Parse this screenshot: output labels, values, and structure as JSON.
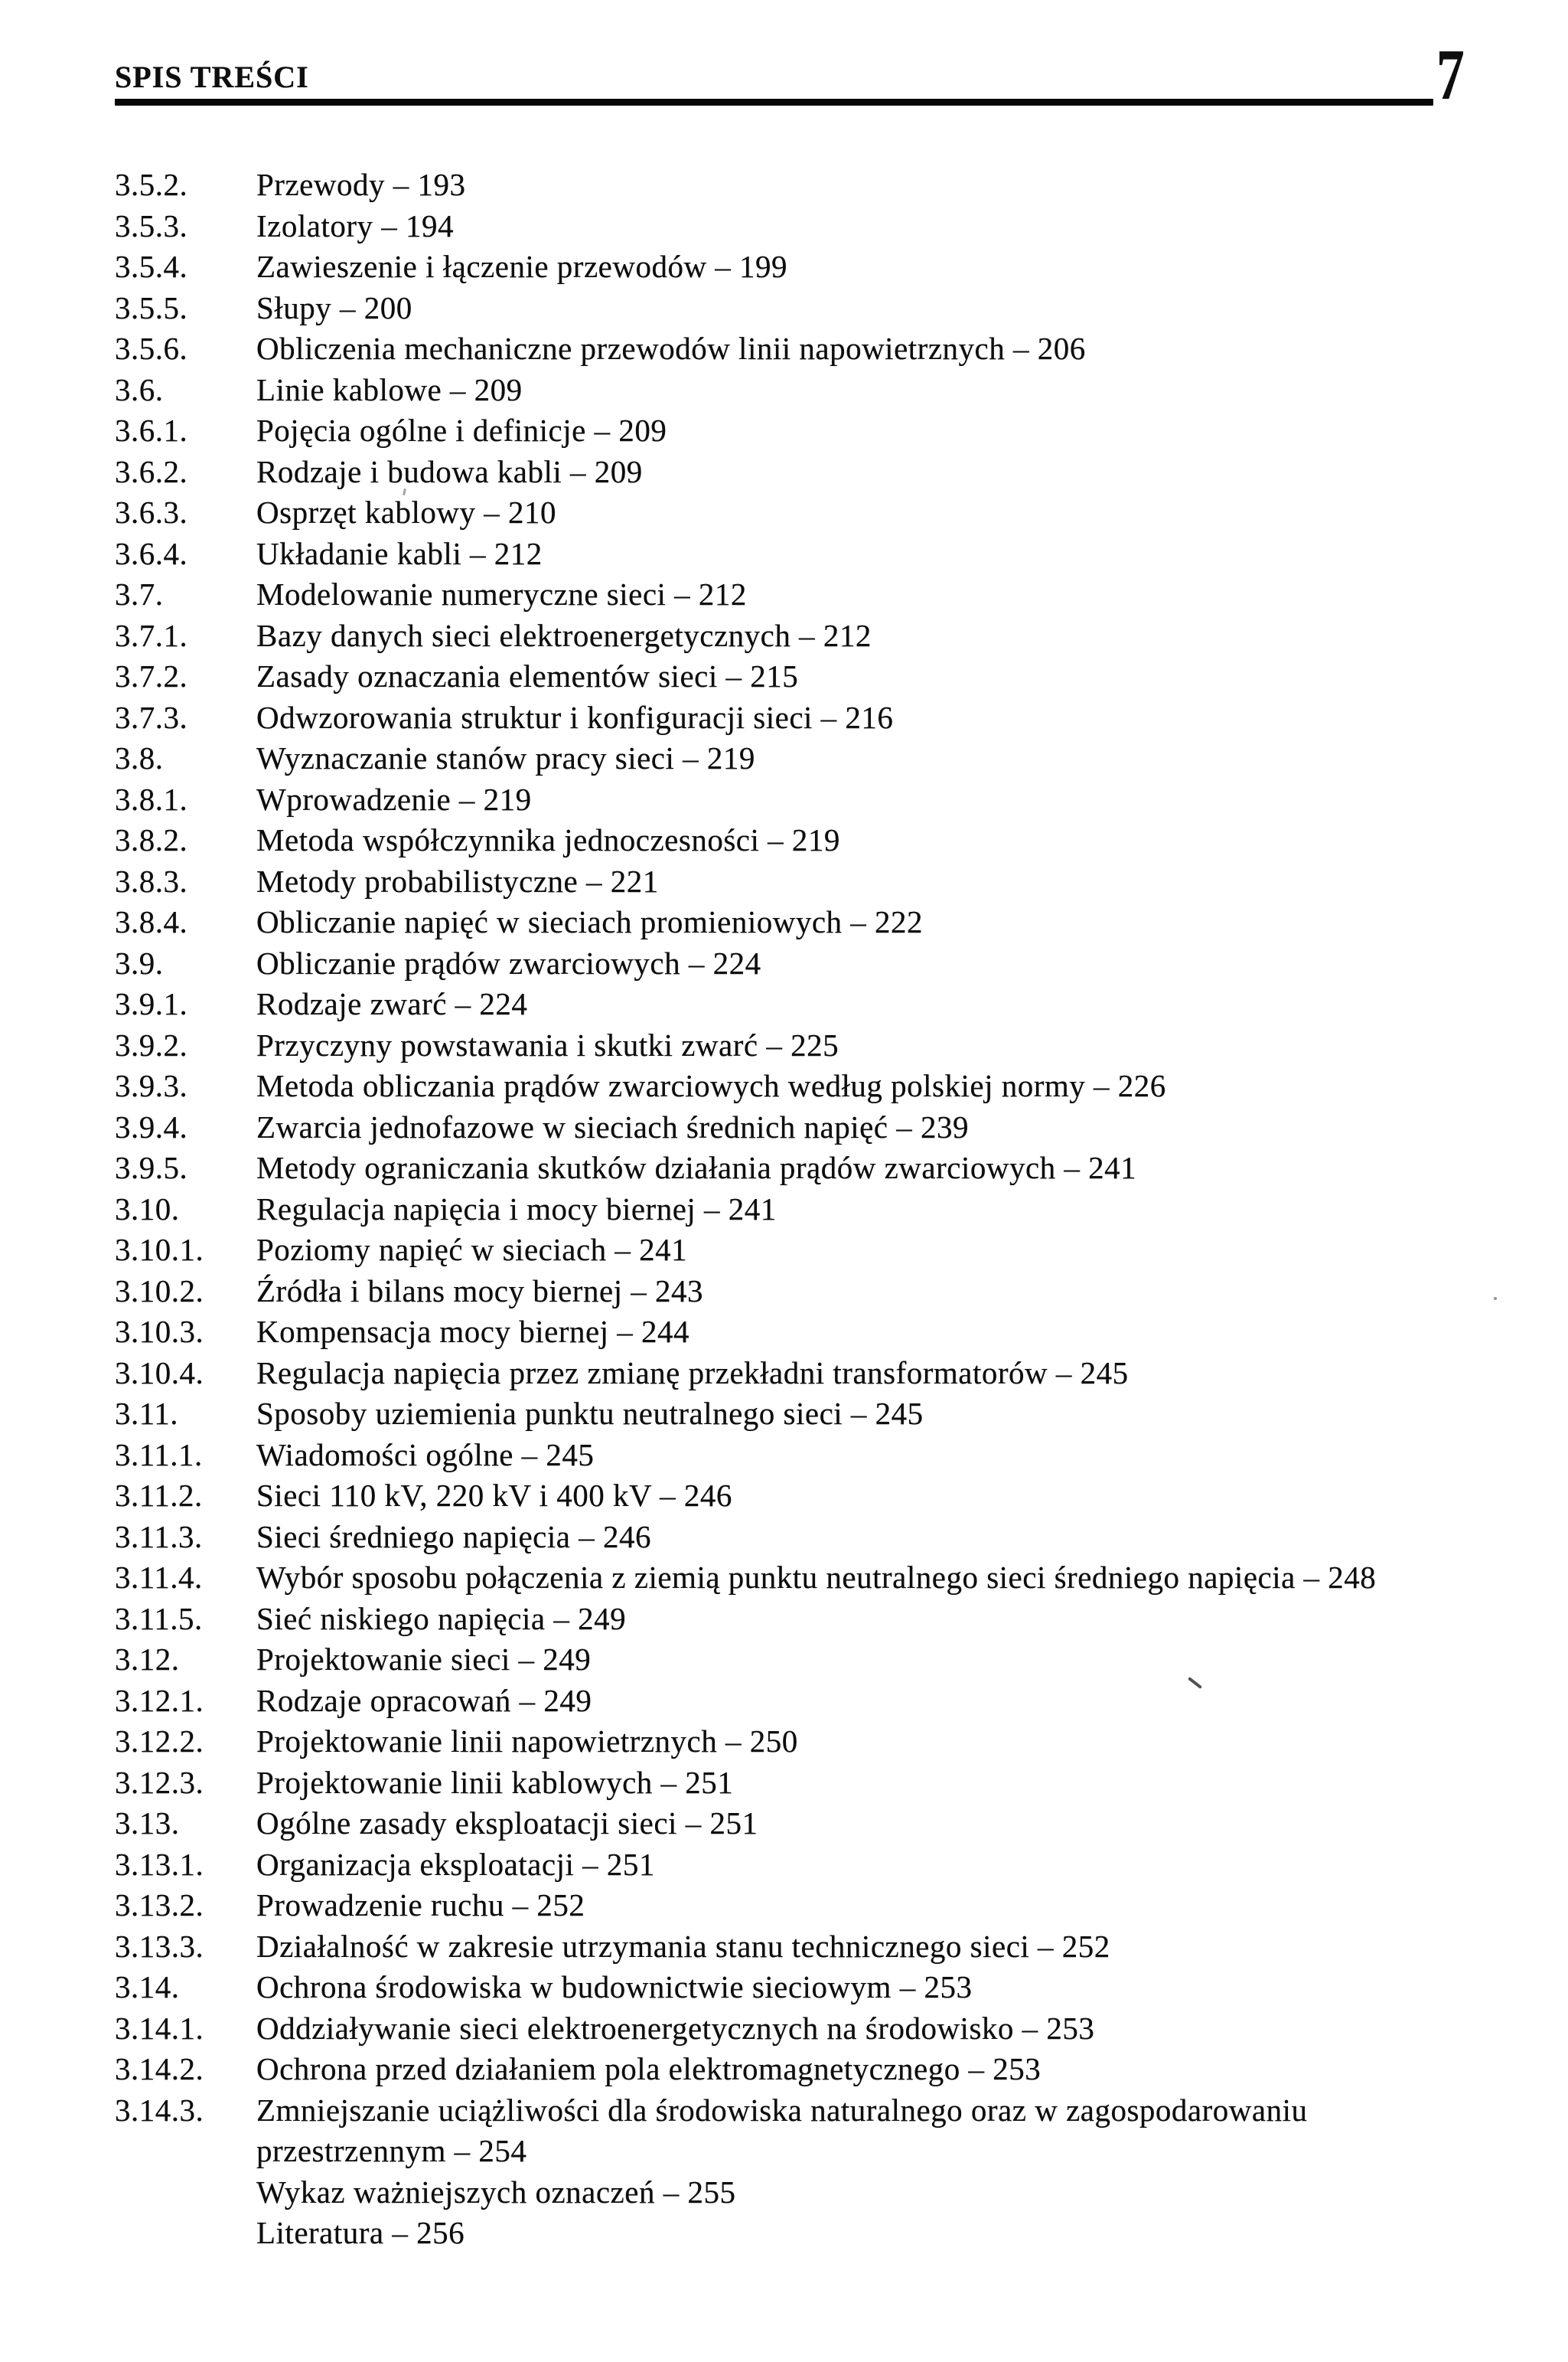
{
  "header": {
    "title": "SPIS TREŚCI",
    "page_number": "7"
  },
  "toc": {
    "separator": "–",
    "entries": [
      {
        "num": "3.5.2.",
        "title": "Przewody",
        "page": "193"
      },
      {
        "num": "3.5.3.",
        "title": "Izolatory",
        "page": "194"
      },
      {
        "num": "3.5.4.",
        "title": "Zawieszenie i łączenie przewodów",
        "page": "199"
      },
      {
        "num": "3.5.5.",
        "title": "Słupy",
        "page": "200"
      },
      {
        "num": "3.5.6.",
        "title": "Obliczenia mechaniczne przewodów linii napowietrznych",
        "page": "206"
      },
      {
        "num": "3.6.",
        "title": "Linie kablowe",
        "page": "209"
      },
      {
        "num": "3.6.1.",
        "title": "Pojęcia ogólne i definicje",
        "page": "209"
      },
      {
        "num": "3.6.2.",
        "title": "Rodzaje i budowa kabli",
        "page": "209"
      },
      {
        "num": "3.6.3.",
        "title": "Osprzęt kablowy",
        "page": "210"
      },
      {
        "num": "3.6.4.",
        "title": "Układanie kabli",
        "page": "212"
      },
      {
        "num": "3.7.",
        "title": "Modelowanie numeryczne sieci",
        "page": "212"
      },
      {
        "num": "3.7.1.",
        "title": "Bazy danych sieci elektroenergetycznych",
        "page": "212"
      },
      {
        "num": "3.7.2.",
        "title": "Zasady oznaczania elementów sieci",
        "page": "215"
      },
      {
        "num": "3.7.3.",
        "title": "Odwzorowania struktur i konfiguracji sieci",
        "page": "216"
      },
      {
        "num": "3.8.",
        "title": "Wyznaczanie stanów pracy sieci",
        "page": "219"
      },
      {
        "num": "3.8.1.",
        "title": "Wprowadzenie",
        "page": "219"
      },
      {
        "num": "3.8.2.",
        "title": "Metoda współczynnika jednoczesności",
        "page": "219"
      },
      {
        "num": "3.8.3.",
        "title": "Metody probabilistyczne",
        "page": "221"
      },
      {
        "num": "3.8.4.",
        "title": "Obliczanie napięć w sieciach promieniowych",
        "page": "222"
      },
      {
        "num": "3.9.",
        "title": "Obliczanie prądów zwarciowych",
        "page": "224"
      },
      {
        "num": "3.9.1.",
        "title": "Rodzaje zwarć",
        "page": "224"
      },
      {
        "num": "3.9.2.",
        "title": "Przyczyny powstawania i skutki zwarć",
        "page": "225"
      },
      {
        "num": "3.9.3.",
        "title": "Metoda obliczania prądów zwarciowych według polskiej normy",
        "page": "226"
      },
      {
        "num": "3.9.4.",
        "title": "Zwarcia jednofazowe w sieciach średnich napięć",
        "page": "239"
      },
      {
        "num": "3.9.5.",
        "title": "Metody ograniczania skutków działania prądów zwarciowych",
        "page": "241"
      },
      {
        "num": "3.10.",
        "title": "Regulacja napięcia i mocy biernej",
        "page": "241"
      },
      {
        "num": "3.10.1.",
        "title": "Poziomy napięć w sieciach",
        "page": "241"
      },
      {
        "num": "3.10.2.",
        "title": "Źródła i bilans mocy biernej",
        "page": "243"
      },
      {
        "num": "3.10.3.",
        "title": "Kompensacja mocy biernej",
        "page": "244"
      },
      {
        "num": "3.10.4.",
        "title": "Regulacja napięcia przez zmianę przekładni transformatorów",
        "page": "245"
      },
      {
        "num": "3.11.",
        "title": "Sposoby uziemienia punktu neutralnego sieci",
        "page": "245"
      },
      {
        "num": "3.11.1.",
        "title": "Wiadomości ogólne",
        "page": "245"
      },
      {
        "num": "3.11.2.",
        "title": "Sieci 110 kV, 220 kV i 400 kV",
        "page": "246"
      },
      {
        "num": "3.11.3.",
        "title": "Sieci średniego napięcia",
        "page": "246"
      },
      {
        "num": "3.11.4.",
        "title": "Wybór sposobu połączenia z ziemią punktu neutralnego sieci średniego napięcia",
        "page": "248"
      },
      {
        "num": "3.11.5.",
        "title": "Sieć niskiego napięcia",
        "page": "249"
      },
      {
        "num": "3.12.",
        "title": "Projektowanie sieci",
        "page": "249"
      },
      {
        "num": "3.12.1.",
        "title": "Rodzaje opracowań",
        "page": "249"
      },
      {
        "num": "3.12.2.",
        "title": "Projektowanie linii napowietrznych",
        "page": "250"
      },
      {
        "num": "3.12.3.",
        "title": "Projektowanie linii kablowych",
        "page": "251"
      },
      {
        "num": "3.13.",
        "title": "Ogólne zasady eksploatacji sieci",
        "page": "251"
      },
      {
        "num": "3.13.1.",
        "title": "Organizacja eksploatacji",
        "page": "251"
      },
      {
        "num": "3.13.2.",
        "title": "Prowadzenie ruchu",
        "page": "252"
      },
      {
        "num": "3.13.3.",
        "title": "Działalność w zakresie utrzymania stanu technicznego sieci",
        "page": "252"
      },
      {
        "num": "3.14.",
        "title": "Ochrona środowiska w budownictwie sieciowym",
        "page": "253"
      },
      {
        "num": "3.14.1.",
        "title": "Oddziaływanie sieci elektroenergetycznych na środowisko",
        "page": "253"
      },
      {
        "num": "3.14.2.",
        "title": "Ochrona przed działaniem pola elektromagnetycznego",
        "page": "253"
      },
      {
        "num": "3.14.3.",
        "title": "Zmniejszanie uciążliwości dla środowiska naturalnego oraz w zagospodarowaniu\nprzestrzennym",
        "page": "254"
      },
      {
        "num": "",
        "title": "Wykaz ważniejszych oznaczeń",
        "page": "255"
      },
      {
        "num": "",
        "title": "Literatura",
        "page": "256"
      }
    ]
  }
}
